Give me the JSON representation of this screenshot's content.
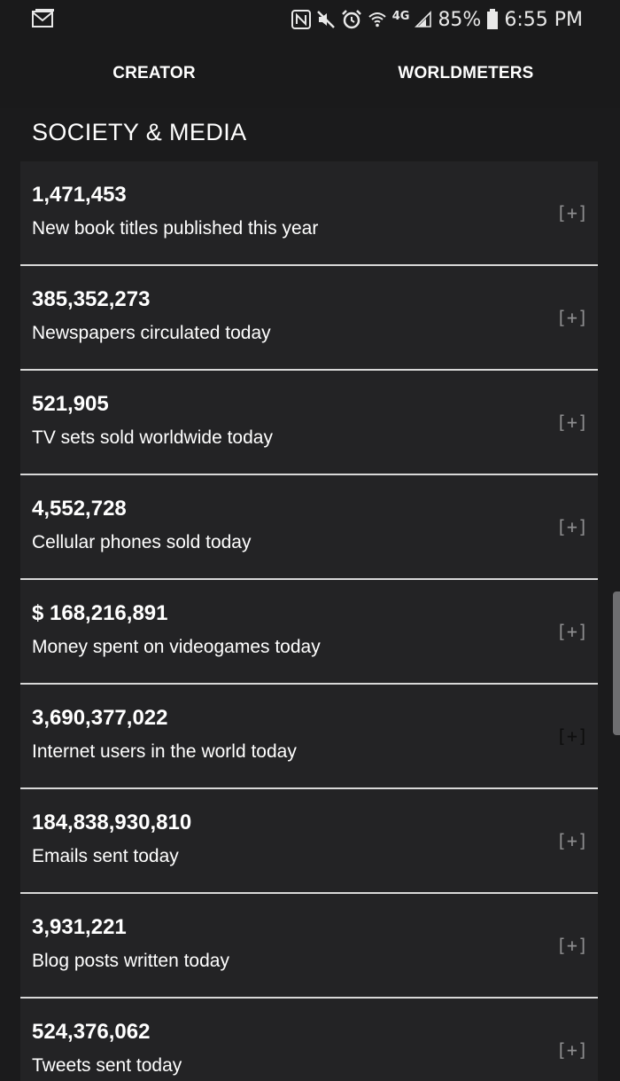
{
  "status_bar": {
    "battery": "85%",
    "time": "6:55 PM",
    "network": "4G",
    "icons": [
      "gmail-icon",
      "nfc-icon",
      "mute-icon",
      "alarm-icon",
      "wifi-icon",
      "signal-icon",
      "battery-icon"
    ]
  },
  "tabs": [
    {
      "label": "CREATOR"
    },
    {
      "label": "WORLDMETERS"
    }
  ],
  "section": {
    "title": "SOCIETY & MEDIA"
  },
  "items": [
    {
      "value": "1,471,453",
      "label": "New book titles published this year",
      "expand": "[+]"
    },
    {
      "value": "385,352,273",
      "label": "Newspapers circulated today",
      "expand": "[+]"
    },
    {
      "value": "521,905",
      "label": "TV sets sold worldwide today",
      "expand": "[+]"
    },
    {
      "value": "4,552,728",
      "label": "Cellular phones sold today",
      "expand": "[+]"
    },
    {
      "value": "$ 168,216,891",
      "label": "Money spent on videogames today",
      "expand": "[+]"
    },
    {
      "value": "3,690,377,022",
      "label": "Internet users in the world today",
      "expand": "[+]"
    },
    {
      "value": "184,838,930,810",
      "label": "Emails sent today",
      "expand": "[+]"
    },
    {
      "value": "3,931,221",
      "label": "Blog posts written today",
      "expand": "[+]"
    },
    {
      "value": "524,376,062",
      "label": "Tweets sent today",
      "expand": "[+]"
    }
  ],
  "colors": {
    "background": "#1a1a1b",
    "card": "#232325",
    "divider": "#d8d8d8",
    "expand": "#8d8d8f"
  }
}
